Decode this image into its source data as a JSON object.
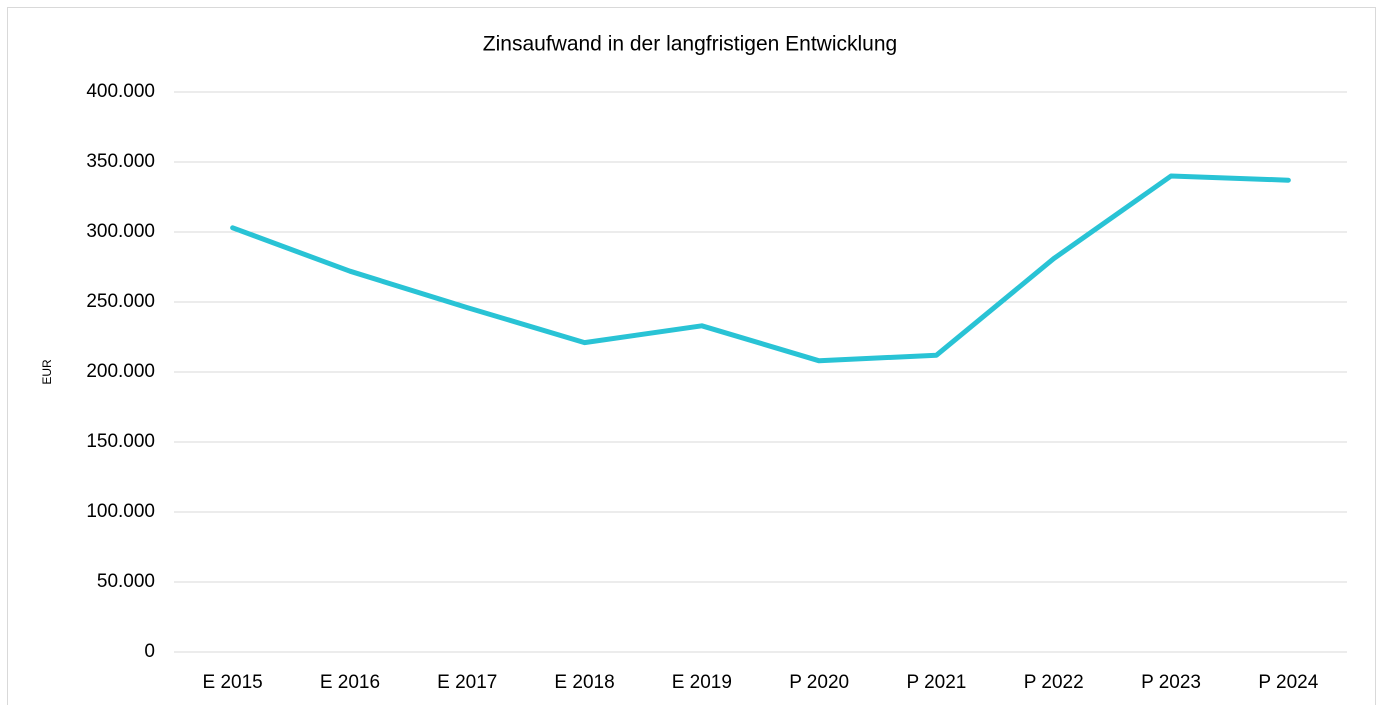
{
  "chart_data": {
    "type": "line",
    "title": "Zinsaufwand in der langfristigen Entwicklung",
    "y_label": "EUR",
    "categories": [
      "E 2015",
      "E 2016",
      "E 2017",
      "E 2018",
      "E 2019",
      "P 2020",
      "P 2021",
      "P 2022",
      "P 2023",
      "P 2024"
    ],
    "series": [
      {
        "color": "#29c3d5",
        "values": [
          303000,
          272000,
          246000,
          221000,
          233000,
          208000,
          212000,
          281000,
          340000,
          337000
        ]
      }
    ],
    "ylim": [
      0,
      400000
    ],
    "yticks": [
      0,
      {
        "value": 50000,
        "label": "50.000"
      },
      {
        "value": 100000,
        "label": "100.000"
      },
      {
        "value": 150000,
        "label": "150.000"
      },
      {
        "value": 200000,
        "label": "200.000"
      },
      {
        "value": 250000,
        "label": "250.000"
      },
      {
        "value": 300000,
        "label": "300.000"
      },
      {
        "value": 350000,
        "label": "350.000"
      },
      {
        "value": 400000,
        "label": "400.000"
      }
    ],
    "grid": true
  }
}
